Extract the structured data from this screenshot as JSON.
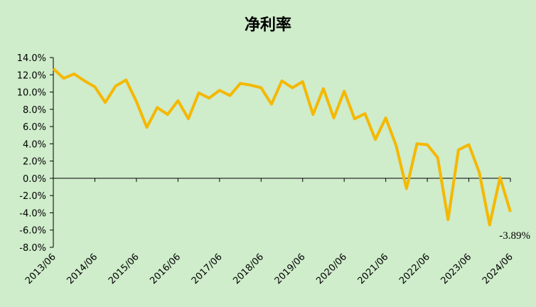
{
  "chart_data": {
    "type": "line",
    "title": "净利率",
    "categories": [
      "2013/06",
      null,
      null,
      null,
      "2014/06",
      null,
      null,
      null,
      "2015/06",
      null,
      null,
      null,
      "2016/06",
      null,
      null,
      null,
      "2017/06",
      null,
      null,
      null,
      "2018/06",
      null,
      null,
      null,
      "2019/06",
      null,
      null,
      null,
      "2020/06",
      null,
      null,
      null,
      "2021/06",
      null,
      null,
      null,
      "2022/06",
      null,
      null,
      null,
      "2023/06",
      null,
      null,
      null,
      "2024/06"
    ],
    "series": [
      {
        "name": "净利率",
        "color": "#f5b800",
        "values": [
          12.7,
          11.6,
          12.1,
          11.3,
          10.6,
          8.8,
          10.7,
          11.4,
          8.9,
          5.9,
          8.2,
          7.4,
          9.0,
          6.9,
          9.9,
          9.3,
          10.2,
          9.6,
          11.0,
          10.8,
          10.5,
          8.6,
          11.3,
          10.5,
          11.2,
          7.4,
          10.4,
          7.0,
          10.1,
          6.9,
          7.5,
          4.5,
          7.0,
          3.8,
          -1.2,
          4.0,
          3.9,
          2.4,
          -4.8,
          3.3,
          3.9,
          0.7,
          -5.4,
          0.1,
          -3.89
        ],
        "value_labels": [
          null,
          null,
          null,
          null,
          null,
          null,
          null,
          null,
          null,
          null,
          null,
          null,
          null,
          null,
          null,
          null,
          null,
          null,
          null,
          null,
          null,
          null,
          null,
          null,
          null,
          null,
          null,
          null,
          null,
          null,
          null,
          null,
          null,
          null,
          null,
          null,
          null,
          null,
          null,
          null,
          null,
          null,
          null,
          null,
          "-3.89%"
        ]
      }
    ],
    "ylim": [
      -8,
      14
    ],
    "yticks": [
      {
        "value": -8,
        "label": "-8.0%"
      },
      {
        "value": -6,
        "label": "-6.0%"
      },
      {
        "value": -4,
        "label": "-4.0%"
      },
      {
        "value": -2,
        "label": "-2.0%"
      },
      {
        "value": 0,
        "label": "0.0%"
      },
      {
        "value": 2,
        "label": "2.0%"
      },
      {
        "value": 4,
        "label": "4.0%"
      },
      {
        "value": 6,
        "label": "6.0%"
      },
      {
        "value": 8,
        "label": "8.0%"
      },
      {
        "value": 10,
        "label": "10.0%"
      },
      {
        "value": 12,
        "label": "12.0%"
      },
      {
        "value": 14,
        "label": "14.0%"
      }
    ],
    "grid": false
  }
}
